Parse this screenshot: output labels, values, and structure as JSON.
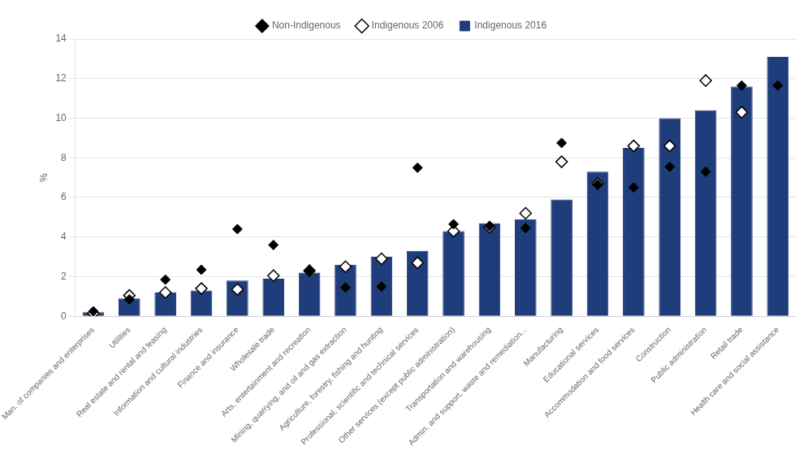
{
  "chart_data": {
    "type": "bar",
    "categories": [
      "Man. of companies and enterprises",
      "Utilities",
      "Real estate and rental and leasing",
      "Information and cultural industries",
      "Finance and insurance",
      "Wholesale trade",
      "Arts, entertainment and recreation",
      "Mining, quarrying, and oil and gas extraction",
      "Agriculture, forestry, fishing and hunting",
      "Professional, scientific and technical services",
      "Other services (except public administration)",
      "Transportation and warehousing",
      "Admin. and support, waste and remediation...",
      "Manufacturing",
      "Educational services",
      "Accommodation and food services",
      "Construction",
      "Public administration",
      "Retail trade",
      "Health care and social assistance"
    ],
    "series": [
      {
        "name": "Indigenous 2016",
        "type": "bar",
        "color": "#1f3d7a",
        "values": [
          0.2,
          0.9,
          1.2,
          1.3,
          1.8,
          1.9,
          2.2,
          2.6,
          3.0,
          3.3,
          4.3,
          4.7,
          4.9,
          5.9,
          7.3,
          8.5,
          10.0,
          10.4,
          11.6,
          13.1
        ]
      },
      {
        "name": "Indigenous 2006",
        "type": "scatter",
        "marker": "open_diamond",
        "color": "#000000",
        "values": [
          0.15,
          1.05,
          1.2,
          1.4,
          1.35,
          2.05,
          2.3,
          2.5,
          2.9,
          2.7,
          4.3,
          4.5,
          5.2,
          7.8,
          6.7,
          8.6,
          8.6,
          11.9,
          10.3,
          null
        ]
      },
      {
        "name": "Non-Indigenous",
        "type": "scatter",
        "marker": "diamond",
        "color": "#000000",
        "values": [
          0.25,
          0.85,
          1.85,
          2.35,
          4.4,
          3.6,
          2.3,
          1.45,
          1.5,
          7.5,
          4.65,
          4.55,
          4.45,
          8.75,
          6.65,
          6.5,
          7.55,
          7.3,
          11.65,
          11.65
        ]
      }
    ],
    "ylabel": "%",
    "ylim": [
      0,
      14
    ],
    "yticks": [
      0,
      2,
      4,
      6,
      8,
      10,
      12,
      14
    ],
    "grid": true,
    "legend": "top"
  }
}
